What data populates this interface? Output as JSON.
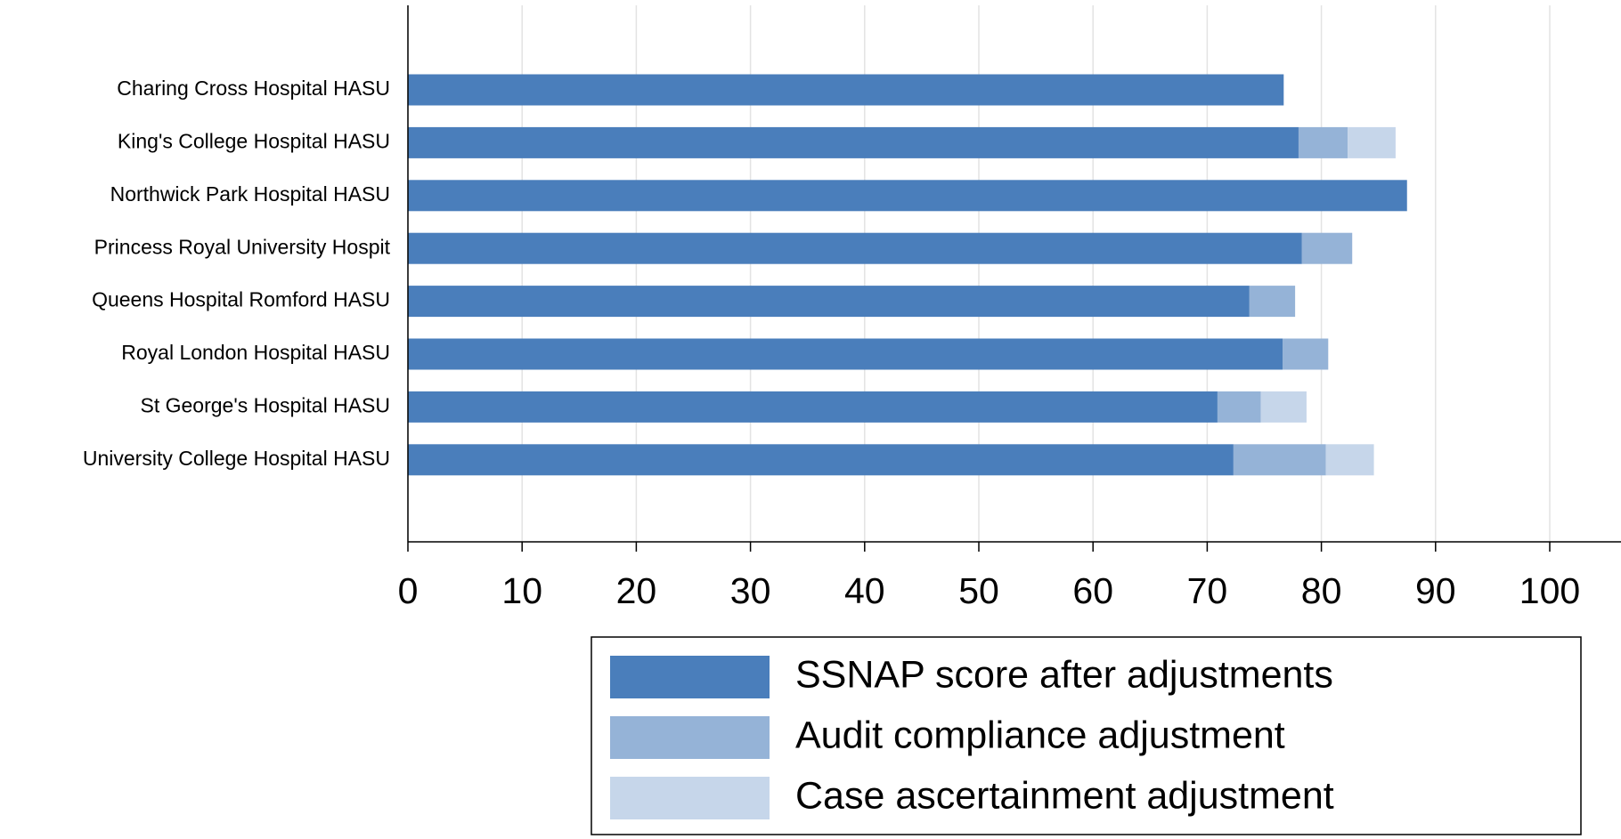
{
  "chart_data": {
    "type": "stacked_barh",
    "categories": [
      "Charing Cross Hospital HASU",
      "King's College Hospital HASU",
      "Northwick Park Hospital HASU",
      "Princess Royal University Hospit",
      "Queens Hospital Romford HASU",
      "Royal London Hospital HASU",
      "St George's Hospital HASU",
      "University College Hospital HASU"
    ],
    "series": [
      {
        "name": "SSNAP score after adjustments",
        "color": "#4a7ebb",
        "values": [
          76.7,
          78,
          87.5,
          78.3,
          73.7,
          76.6,
          70.9,
          72.3
        ]
      },
      {
        "name": "Audit compliance adjustment",
        "color": "#95b3d7",
        "values": [
          0,
          4.3,
          0,
          4.4,
          4,
          4,
          3.8,
          8.1
        ]
      },
      {
        "name": "Case ascertainment adjustment",
        "color": "#c6d6ea",
        "values": [
          0,
          4.2,
          0,
          0,
          0,
          0,
          4,
          4.2
        ]
      }
    ],
    "xlim": [
      0,
      100
    ],
    "xticks": [
      0,
      10,
      20,
      30,
      40,
      50,
      60,
      70,
      80,
      90,
      100
    ],
    "grid": true
  }
}
